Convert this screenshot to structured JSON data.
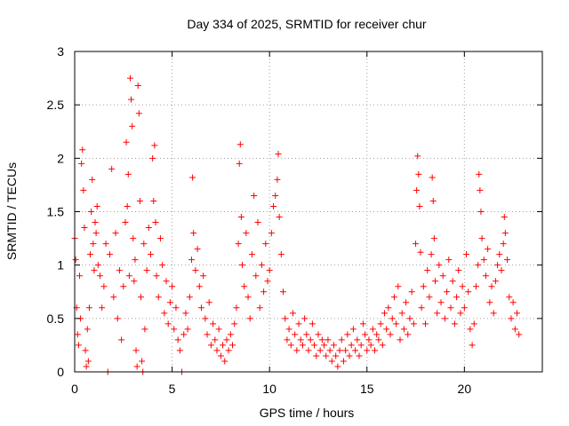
{
  "chart_data": {
    "type": "scatter",
    "title": "Day 334 of 2025, SRMTID for receiver chur",
    "xlabel": "GPS time / hours",
    "ylabel": "SRMTID / TECUs",
    "xlim": [
      0,
      24
    ],
    "ylim": [
      0,
      3
    ],
    "xticks": [
      0,
      5,
      10,
      15,
      20
    ],
    "yticks": [
      0,
      0.5,
      1,
      1.5,
      2,
      2.5,
      3
    ],
    "xtick_labels": [
      "0",
      "5",
      "10",
      "15",
      "20"
    ],
    "ytick_labels": [
      "0",
      "0.5",
      "1",
      "1.5",
      "2",
      "2.5",
      "3"
    ],
    "grid": true,
    "marker": "+",
    "color": "#ff0000",
    "series": [
      {
        "name": "SRMTID",
        "points": [
          [
            0.0,
            1.25
          ],
          [
            0.05,
            1.05
          ],
          [
            0.1,
            0.6
          ],
          [
            0.15,
            0.35
          ],
          [
            0.2,
            0.25
          ],
          [
            0.25,
            0.9
          ],
          [
            0.3,
            0.5
          ],
          [
            0.35,
            1.95
          ],
          [
            0.4,
            2.08
          ],
          [
            0.45,
            1.7
          ],
          [
            0.5,
            1.35
          ],
          [
            0.55,
            0.2
          ],
          [
            0.6,
            0.05
          ],
          [
            0.65,
            0.4
          ],
          [
            0.7,
            0.1
          ],
          [
            0.75,
            0.6
          ],
          [
            0.8,
            1.1
          ],
          [
            0.85,
            1.5
          ],
          [
            0.9,
            1.8
          ],
          [
            0.95,
            1.2
          ],
          [
            1.0,
            0.95
          ],
          [
            1.05,
            1.4
          ],
          [
            1.1,
            1.3
          ],
          [
            1.15,
            1.55
          ],
          [
            1.2,
            1.0
          ],
          [
            1.3,
            0.9
          ],
          [
            1.4,
            0.6
          ],
          [
            1.5,
            0.8
          ],
          [
            1.6,
            1.2
          ],
          [
            1.7,
            0.0
          ],
          [
            1.8,
            1.1
          ],
          [
            1.9,
            1.9
          ],
          [
            2.0,
            0.7
          ],
          [
            2.1,
            1.3
          ],
          [
            2.2,
            0.5
          ],
          [
            2.3,
            0.95
          ],
          [
            2.4,
            0.3
          ],
          [
            2.5,
            0.8
          ],
          [
            2.6,
            1.4
          ],
          [
            2.65,
            2.15
          ],
          [
            2.7,
            1.55
          ],
          [
            2.75,
            1.85
          ],
          [
            2.8,
            0.9
          ],
          [
            2.85,
            2.75
          ],
          [
            2.9,
            2.55
          ],
          [
            2.95,
            2.3
          ],
          [
            3.0,
            1.25
          ],
          [
            3.05,
            0.85
          ],
          [
            3.1,
            1.05
          ],
          [
            3.15,
            0.2
          ],
          [
            3.2,
            0.05
          ],
          [
            3.25,
            2.68
          ],
          [
            3.3,
            2.42
          ],
          [
            3.35,
            1.6
          ],
          [
            3.4,
            0.7
          ],
          [
            3.45,
            0.1
          ],
          [
            3.5,
            0.0
          ],
          [
            3.55,
            1.2
          ],
          [
            3.6,
            0.4
          ],
          [
            3.7,
            0.95
          ],
          [
            3.8,
            1.35
          ],
          [
            3.9,
            1.1
          ],
          [
            4.0,
            2.0
          ],
          [
            4.05,
            1.6
          ],
          [
            4.1,
            2.12
          ],
          [
            4.15,
            1.4
          ],
          [
            4.2,
            0.9
          ],
          [
            4.3,
            0.7
          ],
          [
            4.4,
            1.25
          ],
          [
            4.5,
            1.0
          ],
          [
            4.6,
            0.55
          ],
          [
            4.7,
            0.85
          ],
          [
            4.8,
            0.45
          ],
          [
            4.9,
            0.65
          ],
          [
            5.0,
            0.8
          ],
          [
            5.1,
            0.4
          ],
          [
            5.2,
            0.6
          ],
          [
            5.3,
            0.3
          ],
          [
            5.4,
            0.2
          ],
          [
            5.5,
            0.0
          ],
          [
            5.6,
            0.35
          ],
          [
            5.7,
            0.55
          ],
          [
            5.8,
            0.4
          ],
          [
            5.9,
            0.7
          ],
          [
            6.0,
            1.05
          ],
          [
            6.05,
            1.82
          ],
          [
            6.1,
            1.3
          ],
          [
            6.2,
            0.95
          ],
          [
            6.3,
            1.15
          ],
          [
            6.4,
            0.8
          ],
          [
            6.5,
            0.6
          ],
          [
            6.6,
            0.9
          ],
          [
            6.7,
            0.5
          ],
          [
            6.8,
            0.35
          ],
          [
            6.9,
            0.65
          ],
          [
            7.0,
            0.25
          ],
          [
            7.1,
            0.45
          ],
          [
            7.2,
            0.3
          ],
          [
            7.3,
            0.2
          ],
          [
            7.4,
            0.4
          ],
          [
            7.5,
            0.15
          ],
          [
            7.6,
            0.25
          ],
          [
            7.7,
            0.1
          ],
          [
            7.8,
            0.3
          ],
          [
            7.9,
            0.2
          ],
          [
            8.0,
            0.35
          ],
          [
            8.1,
            0.25
          ],
          [
            8.2,
            0.45
          ],
          [
            8.3,
            0.6
          ],
          [
            8.4,
            1.2
          ],
          [
            8.45,
            1.95
          ],
          [
            8.5,
            2.13
          ],
          [
            8.55,
            1.45
          ],
          [
            8.6,
            1.0
          ],
          [
            8.7,
            0.8
          ],
          [
            8.8,
            1.3
          ],
          [
            8.9,
            0.7
          ],
          [
            9.0,
            0.5
          ],
          [
            9.1,
            1.1
          ],
          [
            9.2,
            1.65
          ],
          [
            9.3,
            0.9
          ],
          [
            9.4,
            1.4
          ],
          [
            9.5,
            0.6
          ],
          [
            9.6,
            1.0
          ],
          [
            9.7,
            0.75
          ],
          [
            9.8,
            1.2
          ],
          [
            9.9,
            0.85
          ],
          [
            10.0,
            0.95
          ],
          [
            10.1,
            1.3
          ],
          [
            10.2,
            1.55
          ],
          [
            10.3,
            1.65
          ],
          [
            10.4,
            1.8
          ],
          [
            10.45,
            2.04
          ],
          [
            10.5,
            1.45
          ],
          [
            10.6,
            1.1
          ],
          [
            10.7,
            0.75
          ],
          [
            10.8,
            0.5
          ],
          [
            10.9,
            0.3
          ],
          [
            11.0,
            0.4
          ],
          [
            11.1,
            0.25
          ],
          [
            11.2,
            0.55
          ],
          [
            11.3,
            0.35
          ],
          [
            11.4,
            0.2
          ],
          [
            11.5,
            0.45
          ],
          [
            11.6,
            0.3
          ],
          [
            11.7,
            0.25
          ],
          [
            11.8,
            0.5
          ],
          [
            11.9,
            0.35
          ],
          [
            12.0,
            0.2
          ],
          [
            12.1,
            0.3
          ],
          [
            12.2,
            0.45
          ],
          [
            12.3,
            0.25
          ],
          [
            12.4,
            0.15
          ],
          [
            12.5,
            0.35
          ],
          [
            12.6,
            0.2
          ],
          [
            12.7,
            0.3
          ],
          [
            12.8,
            0.25
          ],
          [
            12.9,
            0.15
          ],
          [
            13.0,
            0.3
          ],
          [
            13.1,
            0.2
          ],
          [
            13.2,
            0.1
          ],
          [
            13.3,
            0.25
          ],
          [
            13.4,
            0.15
          ],
          [
            13.5,
            0.05
          ],
          [
            13.6,
            0.2
          ],
          [
            13.7,
            0.3
          ],
          [
            13.8,
            0.1
          ],
          [
            13.9,
            0.2
          ],
          [
            14.0,
            0.35
          ],
          [
            14.1,
            0.15
          ],
          [
            14.2,
            0.25
          ],
          [
            14.3,
            0.4
          ],
          [
            14.4,
            0.2
          ],
          [
            14.5,
            0.3
          ],
          [
            14.6,
            0.15
          ],
          [
            14.7,
            0.25
          ],
          [
            14.8,
            0.45
          ],
          [
            14.9,
            0.35
          ],
          [
            15.0,
            0.2
          ],
          [
            15.1,
            0.3
          ],
          [
            15.2,
            0.25
          ],
          [
            15.3,
            0.4
          ],
          [
            15.4,
            0.2
          ],
          [
            15.5,
            0.35
          ],
          [
            15.6,
            0.3
          ],
          [
            15.7,
            0.45
          ],
          [
            15.8,
            0.25
          ],
          [
            15.9,
            0.55
          ],
          [
            16.0,
            0.4
          ],
          [
            16.1,
            0.6
          ],
          [
            16.2,
            0.35
          ],
          [
            16.3,
            0.5
          ],
          [
            16.4,
            0.7
          ],
          [
            16.5,
            0.45
          ],
          [
            16.6,
            0.8
          ],
          [
            16.7,
            0.3
          ],
          [
            16.8,
            0.55
          ],
          [
            16.9,
            0.4
          ],
          [
            17.0,
            0.65
          ],
          [
            17.1,
            0.35
          ],
          [
            17.2,
            0.5
          ],
          [
            17.3,
            0.75
          ],
          [
            17.4,
            0.45
          ],
          [
            17.5,
            1.2
          ],
          [
            17.55,
            1.7
          ],
          [
            17.6,
            2.02
          ],
          [
            17.65,
            1.85
          ],
          [
            17.7,
            1.55
          ],
          [
            17.75,
            1.12
          ],
          [
            17.8,
            0.6
          ],
          [
            17.9,
            0.8
          ],
          [
            18.0,
            0.45
          ],
          [
            18.1,
            0.95
          ],
          [
            18.2,
            0.7
          ],
          [
            18.3,
            1.1
          ],
          [
            18.35,
            1.82
          ],
          [
            18.4,
            1.6
          ],
          [
            18.45,
            1.25
          ],
          [
            18.5,
            0.85
          ],
          [
            18.6,
            0.55
          ],
          [
            18.7,
            1.0
          ],
          [
            18.8,
            0.65
          ],
          [
            18.9,
            0.9
          ],
          [
            19.0,
            0.5
          ],
          [
            19.1,
            0.75
          ],
          [
            19.2,
            1.05
          ],
          [
            19.3,
            0.6
          ],
          [
            19.4,
            0.85
          ],
          [
            19.5,
            0.45
          ],
          [
            19.6,
            0.7
          ],
          [
            19.7,
            0.95
          ],
          [
            19.8,
            0.55
          ],
          [
            19.9,
            0.8
          ],
          [
            20.0,
            0.6
          ],
          [
            20.1,
            1.1
          ],
          [
            20.2,
            0.75
          ],
          [
            20.3,
            0.4
          ],
          [
            20.4,
            0.25
          ],
          [
            20.5,
            0.45
          ],
          [
            20.6,
            0.8
          ],
          [
            20.7,
            1.0
          ],
          [
            20.75,
            1.85
          ],
          [
            20.8,
            1.7
          ],
          [
            20.85,
            1.5
          ],
          [
            20.9,
            1.25
          ],
          [
            21.0,
            1.05
          ],
          [
            21.1,
            0.9
          ],
          [
            21.2,
            1.15
          ],
          [
            21.3,
            0.65
          ],
          [
            21.4,
            0.8
          ],
          [
            21.5,
            0.55
          ],
          [
            21.6,
            0.85
          ],
          [
            21.7,
            1.0
          ],
          [
            21.8,
            1.1
          ],
          [
            21.9,
            0.95
          ],
          [
            22.0,
            1.2
          ],
          [
            22.05,
            1.45
          ],
          [
            22.1,
            1.3
          ],
          [
            22.2,
            1.05
          ],
          [
            22.3,
            0.7
          ],
          [
            22.4,
            0.5
          ],
          [
            22.5,
            0.65
          ],
          [
            22.6,
            0.4
          ],
          [
            22.7,
            0.55
          ],
          [
            22.8,
            0.35
          ]
        ]
      }
    ]
  }
}
